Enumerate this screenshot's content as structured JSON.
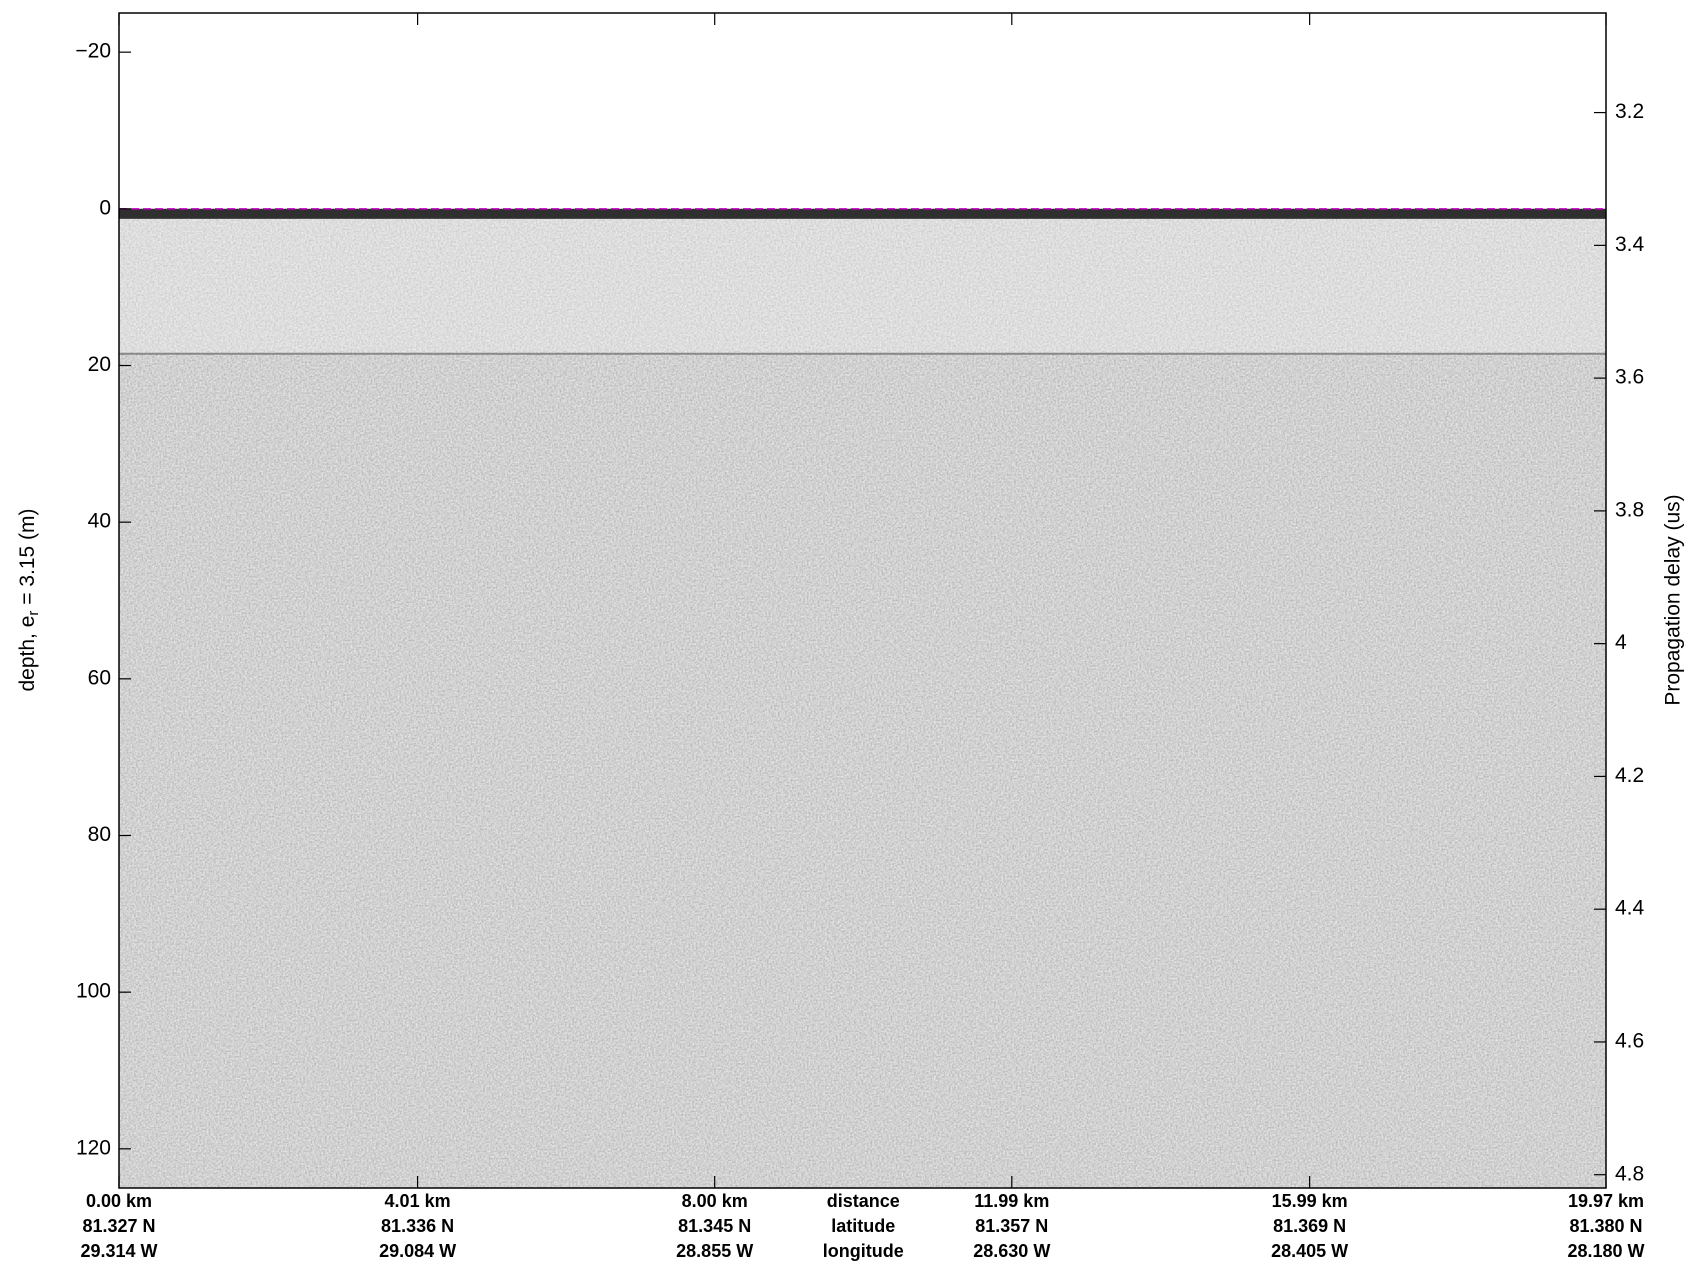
{
  "chart_data": {
    "type": "radargram",
    "ylabel": {
      "text": "depth, e",
      "subscript": "r",
      "suffix": " = 3.15 (m)"
    },
    "y2label": "Propagation delay (us)",
    "ylim": [
      -25,
      125
    ],
    "yticks": [
      {
        "value": -20,
        "label": "−20"
      },
      0,
      20,
      40,
      60,
      80,
      100,
      120
    ],
    "y2lim": [
      3.05,
      4.82
    ],
    "y2ticks": [
      3.2,
      3.4,
      3.6,
      3.8,
      4,
      4.2,
      4.4,
      4.6,
      4.8
    ],
    "xlim": [
      0,
      19.97
    ],
    "xticks": [
      {
        "value": 0,
        "label": "0.00 km"
      },
      {
        "value": 4.01,
        "label": "4.01 km"
      },
      {
        "value": 8.0,
        "label": "8.00 km"
      },
      {
        "value": 11.99,
        "label": "11.99 km"
      },
      {
        "value": 15.99,
        "label": "15.99 km"
      },
      {
        "value": 19.97,
        "label": "19.97 km"
      }
    ],
    "x_tick_latitudes": [
      "81.327 N",
      "81.336 N",
      "81.345 N",
      "81.357 N",
      "81.369 N",
      "81.380 N"
    ],
    "x_tick_longitudes": [
      "29.314 W",
      "29.084 W",
      "28.855 W",
      "28.630 W",
      "28.405 W",
      "28.180 W"
    ],
    "x_row_labels": [
      "distance",
      "latitude",
      "longitude"
    ],
    "surface_depth": 0,
    "internal_layer_depth": 18.5,
    "surface_line_color": "#c000c0"
  }
}
